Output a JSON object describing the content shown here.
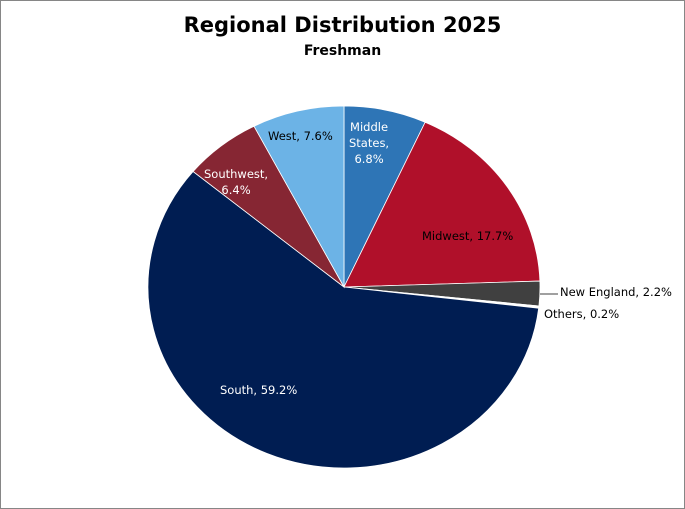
{
  "chart_data": {
    "type": "pie",
    "title": "Regional Distribution 2025",
    "subtitle": "Freshman",
    "start_angle_deg": 0,
    "direction": "clockwise",
    "slices": [
      {
        "label": "Middle States",
        "value": 6.8,
        "display": "Middle States, 6.8%",
        "color": "#2E75B6",
        "text_color": "#FFFFFF"
      },
      {
        "label": "Midwest",
        "value": 17.7,
        "display": "Midwest, 17.7%",
        "color": "#B0102A",
        "text_color": "#000000"
      },
      {
        "label": "New England",
        "value": 2.2,
        "display": "New England, 2.2%",
        "color": "#404040",
        "text_color": "#000000"
      },
      {
        "label": "Others",
        "value": 0.2,
        "display": "Others, 0.2%",
        "color": "#FFFFFF",
        "text_color": "#000000"
      },
      {
        "label": "South",
        "value": 59.2,
        "display": "South, 59.2%",
        "color": "#001D52",
        "text_color": "#FFFFFF"
      },
      {
        "label": "Southwest",
        "value": 6.4,
        "display": "Southwest, 6.4%",
        "color": "#862633",
        "text_color": "#FFFFFF"
      },
      {
        "label": "West",
        "value": 7.6,
        "display": "West, 7.6%",
        "color": "#6CB3E6",
        "text_color": "#000000"
      }
    ],
    "legend": "none",
    "data_labels": "category, percentage"
  },
  "labels": {
    "middle_states": [
      "Middle",
      "States,",
      "6.8%"
    ],
    "midwest": "Midwest, 17.7%",
    "new_england": "New England, 2.2%",
    "others": "Others, 0.2%",
    "south": "South, 59.2%",
    "southwest": [
      "Southwest,",
      "6.4%"
    ],
    "west": "West, 7.6%"
  }
}
